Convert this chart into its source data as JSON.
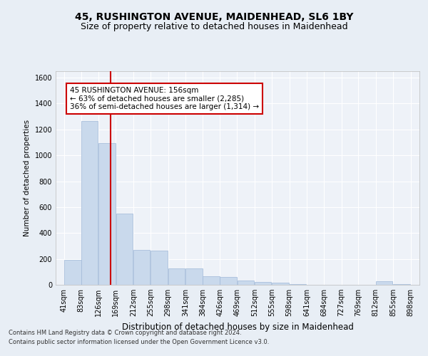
{
  "title": "45, RUSHINGTON AVENUE, MAIDENHEAD, SL6 1BY",
  "subtitle": "Size of property relative to detached houses in Maidenhead",
  "xlabel": "Distribution of detached houses by size in Maidenhead",
  "ylabel": "Number of detached properties",
  "footer_line1": "Contains HM Land Registry data © Crown copyright and database right 2024.",
  "footer_line2": "Contains public sector information licensed under the Open Government Licence v3.0.",
  "annotation_line1": "45 RUSHINGTON AVENUE: 156sqm",
  "annotation_line2": "← 63% of detached houses are smaller (2,285)",
  "annotation_line3": "36% of semi-detached houses are larger (1,314) →",
  "bar_color": "#c9d9ec",
  "bar_edge_color": "#a0b8d8",
  "vline_x": 156,
  "vline_color": "#cc0000",
  "annotation_box_color": "#cc0000",
  "ylim": [
    0,
    1650
  ],
  "xlim": [
    20,
    920
  ],
  "yticks": [
    0,
    200,
    400,
    600,
    800,
    1000,
    1200,
    1400,
    1600
  ],
  "bin_edges": [
    41,
    83,
    126,
    169,
    212,
    255,
    298,
    341,
    384,
    426,
    469,
    512,
    555,
    598,
    641,
    684,
    727,
    769,
    812,
    855,
    898
  ],
  "bin_heights": [
    195,
    1265,
    1095,
    550,
    270,
    265,
    125,
    125,
    65,
    60,
    35,
    20,
    15,
    5,
    0,
    0,
    0,
    0,
    30,
    5,
    0
  ],
  "background_color": "#e8eef5",
  "plot_bg_color": "#eef2f8",
  "grid_color": "#ffffff",
  "title_fontsize": 10,
  "subtitle_fontsize": 9,
  "tick_label_fontsize": 7,
  "ylabel_fontsize": 7.5,
  "xlabel_fontsize": 8.5
}
